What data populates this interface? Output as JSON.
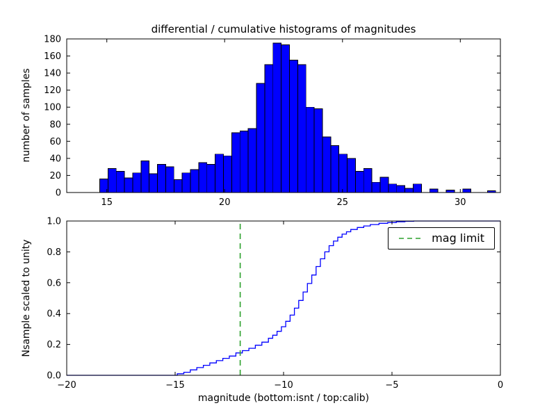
{
  "figure": {
    "background": "#ffffff"
  },
  "chart_data": [
    {
      "type": "bar",
      "name": "differential-histogram",
      "title": "differential / cumulative histograms of magnitudes",
      "ylabel": "number of samples",
      "xlim": [
        13.3,
        31.7
      ],
      "ylim": [
        0,
        180
      ],
      "xticks": [
        15,
        20,
        25,
        30
      ],
      "xtick_labels": [
        "15",
        "20",
        "25",
        "30"
      ],
      "yticks": [
        0,
        20,
        40,
        60,
        80,
        100,
        120,
        140,
        160,
        180
      ],
      "ytick_labels": [
        "0",
        "20",
        "40",
        "60",
        "80",
        "100",
        "120",
        "140",
        "160",
        "180"
      ],
      "grid": false,
      "bar_color": "#0000ff",
      "bar_edge_color": "#000000",
      "bins": {
        "start": 14.7,
        "width": 0.35
      },
      "counts": [
        16,
        28,
        25,
        17,
        23,
        37,
        22,
        33,
        30,
        15,
        23,
        27,
        35,
        33,
        45,
        43,
        70,
        72,
        75,
        128,
        150,
        175,
        173,
        155,
        150,
        100,
        98,
        65,
        55,
        45,
        40,
        25,
        28,
        12,
        18,
        10,
        8,
        5,
        10,
        0,
        4,
        0,
        3,
        0,
        4,
        0,
        0,
        2
      ]
    },
    {
      "type": "line",
      "name": "cumulative-histogram",
      "xlabel": "magnitude (bottom:isnt / top:calib)",
      "ylabel": "Nsample scaled to unity",
      "xlim": [
        -20,
        0
      ],
      "ylim": [
        0.0,
        1.0
      ],
      "xticks": [
        -20,
        -15,
        -10,
        -5,
        0
      ],
      "xtick_labels": [
        "−20",
        "−15",
        "−10",
        "−5",
        "0"
      ],
      "yticks": [
        0.0,
        0.2,
        0.4,
        0.6,
        0.8,
        1.0
      ],
      "ytick_labels": [
        "0.0",
        "0.2",
        "0.4",
        "0.6",
        "0.8",
        "1.0"
      ],
      "grid": false,
      "line_color": "#0000ff",
      "step": "post",
      "x": [
        -20,
        -15.2,
        -14.9,
        -14.6,
        -14.3,
        -14.0,
        -13.7,
        -13.4,
        -13.1,
        -12.8,
        -12.5,
        -12.2,
        -11.9,
        -11.6,
        -11.3,
        -11.0,
        -10.7,
        -10.5,
        -10.3,
        -10.1,
        -9.9,
        -9.7,
        -9.5,
        -9.3,
        -9.1,
        -8.9,
        -8.7,
        -8.5,
        -8.3,
        -8.1,
        -7.9,
        -7.7,
        -7.5,
        -7.3,
        -7.1,
        -6.9,
        -6.6,
        -6.3,
        -6.0,
        -5.6,
        -5.2,
        -4.8,
        -4.4,
        -4.0,
        0
      ],
      "y": [
        0,
        0,
        0.01,
        0.02,
        0.035,
        0.05,
        0.065,
        0.08,
        0.095,
        0.11,
        0.125,
        0.145,
        0.16,
        0.175,
        0.195,
        0.215,
        0.24,
        0.26,
        0.285,
        0.315,
        0.35,
        0.39,
        0.435,
        0.485,
        0.54,
        0.595,
        0.65,
        0.705,
        0.755,
        0.8,
        0.84,
        0.87,
        0.895,
        0.915,
        0.93,
        0.945,
        0.958,
        0.968,
        0.977,
        0.985,
        0.99,
        0.995,
        0.998,
        1.0,
        1.0
      ],
      "vline": {
        "x": -12,
        "color": "#2ca02c",
        "style": "dashed",
        "label": "mag limit"
      },
      "legend": {
        "position": "upper right",
        "entries": [
          {
            "label": "mag limit",
            "color": "#2ca02c",
            "dashed": true
          }
        ]
      }
    }
  ]
}
